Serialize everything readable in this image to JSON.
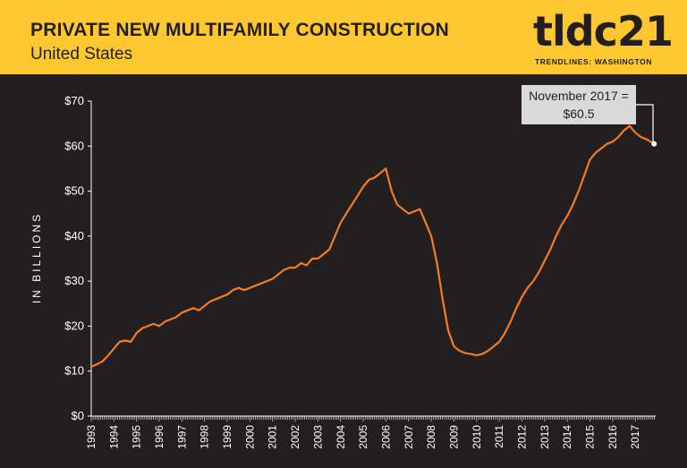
{
  "header": {
    "title": "PRIVATE NEW MULTIFAMILY CONSTRUCTION",
    "subtitle": "United States",
    "logo": "tldc21",
    "logo_sub": "TRENDLINES: WASHINGTON"
  },
  "colors": {
    "banner": "#fdc82f",
    "background": "#231f20",
    "line": "#f47b20",
    "text": "#ffffff"
  },
  "annotation": {
    "line1": "November 2017 =",
    "line2": "$60.5"
  },
  "chart_data": {
    "type": "line",
    "ylabel": "IN BILLIONS",
    "ylim": [
      0,
      70
    ],
    "xlim": [
      1993,
      2017.9
    ],
    "yticks": [
      "$0",
      "$10",
      "$20",
      "$30",
      "$40",
      "$50",
      "$60",
      "$70"
    ],
    "xticks": [
      "1993",
      "1994",
      "1995",
      "1996",
      "1997",
      "1998",
      "1999",
      "2000",
      "2001",
      "2002",
      "2003",
      "2004",
      "2005",
      "2006",
      "2007",
      "2008",
      "2009",
      "2010",
      "2011",
      "2012",
      "2013",
      "2014",
      "2015",
      "2016",
      "2017"
    ],
    "series": [
      {
        "x": [
          1993.0,
          1993.25,
          1993.5,
          1993.75,
          1994.0,
          1994.25,
          1994.5,
          1994.75,
          1995.0,
          1995.25,
          1995.5,
          1995.75,
          1996.0,
          1996.25,
          1996.5,
          1996.75,
          1997.0,
          1997.25,
          1997.5,
          1997.75,
          1998.0,
          1998.25,
          1998.5,
          1998.75,
          1999.0,
          1999.25,
          1999.5,
          1999.75,
          2000.0,
          2000.25,
          2000.5,
          2000.75,
          2001.0,
          2001.25,
          2001.5,
          2001.75,
          2002.0,
          2002.25,
          2002.5,
          2002.75,
          2003.0,
          2003.25,
          2003.5,
          2003.75,
          2004.0,
          2004.25,
          2004.5,
          2004.75,
          2005.0,
          2005.25,
          2005.5,
          2005.75,
          2006.0,
          2006.25,
          2006.5,
          2006.75,
          2007.0,
          2007.25,
          2007.5,
          2007.75,
          2008.0,
          2008.25,
          2008.5,
          2008.75,
          2009.0,
          2009.25,
          2009.5,
          2009.75,
          2010.0,
          2010.25,
          2010.5,
          2010.75,
          2011.0,
          2011.25,
          2011.5,
          2011.75,
          2012.0,
          2012.25,
          2012.5,
          2012.75,
          2013.0,
          2013.25,
          2013.5,
          2013.75,
          2014.0,
          2014.25,
          2014.5,
          2014.75,
          2015.0,
          2015.25,
          2015.5,
          2015.75,
          2016.0,
          2016.25,
          2016.5,
          2016.75,
          2017.0,
          2017.25,
          2017.5,
          2017.83
        ],
        "y": [
          11.0,
          11.5,
          12.2,
          13.5,
          15.0,
          16.5,
          16.8,
          16.5,
          18.5,
          19.5,
          20.0,
          20.5,
          20.0,
          21.0,
          21.5,
          22.0,
          23.0,
          23.5,
          24.0,
          23.5,
          24.5,
          25.5,
          26.0,
          26.5,
          27.0,
          28.0,
          28.5,
          28.0,
          28.5,
          29.0,
          29.5,
          30.0,
          30.5,
          31.5,
          32.5,
          33.0,
          33.0,
          34.0,
          33.5,
          35.0,
          35.0,
          36.0,
          37.0,
          40.0,
          43.0,
          45.0,
          47.0,
          49.0,
          51.0,
          52.5,
          53.0,
          54.0,
          55.0,
          50.0,
          47.0,
          46.0,
          45.0,
          45.5,
          46.0,
          43.0,
          40.0,
          34.0,
          26.0,
          19.0,
          15.5,
          14.5,
          14.0,
          13.8,
          13.5,
          13.8,
          14.5,
          15.5,
          16.5,
          18.5,
          21.0,
          24.0,
          26.5,
          28.5,
          30.0,
          32.0,
          34.5,
          37.0,
          40.0,
          42.5,
          44.5,
          47.0,
          50.0,
          53.5,
          57.0,
          58.5,
          59.5,
          60.5,
          61.0,
          62.0,
          63.5,
          64.5,
          63.0,
          62.0,
          61.5,
          60.5
        ]
      }
    ]
  }
}
